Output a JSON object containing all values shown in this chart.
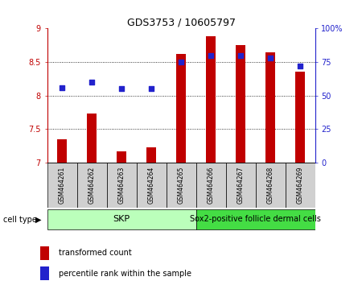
{
  "title": "GDS3753 / 10605797",
  "categories": [
    "GSM464261",
    "GSM464262",
    "GSM464263",
    "GSM464264",
    "GSM464265",
    "GSM464266",
    "GSM464267",
    "GSM464268",
    "GSM464269"
  ],
  "red_values": [
    7.35,
    7.73,
    7.17,
    7.22,
    8.62,
    8.88,
    8.75,
    8.65,
    8.35
  ],
  "blue_values": [
    56,
    60,
    55,
    55,
    75,
    80,
    80,
    78,
    72
  ],
  "ylim_left": [
    7.0,
    9.0
  ],
  "ylim_right": [
    0,
    100
  ],
  "yticks_left": [
    7.0,
    7.5,
    8.0,
    8.5,
    9.0
  ],
  "yticks_right": [
    0,
    25,
    50,
    75,
    100
  ],
  "ytick_labels_right": [
    "0",
    "25",
    "50",
    "75",
    "100%"
  ],
  "grid_lines": [
    7.5,
    8.0,
    8.5
  ],
  "bar_color": "#c00000",
  "dot_color": "#2222cc",
  "group1_label": "SKP",
  "group2_label": "Sox2-positive follicle dermal cells",
  "group1_color": "#bbffbb",
  "group2_color": "#44dd44",
  "cell_type_label": "cell type",
  "legend_red": "transformed count",
  "legend_blue": "percentile rank within the sample",
  "bar_width": 0.35,
  "dot_size": 25,
  "xlim": [
    -0.5,
    8.5
  ]
}
